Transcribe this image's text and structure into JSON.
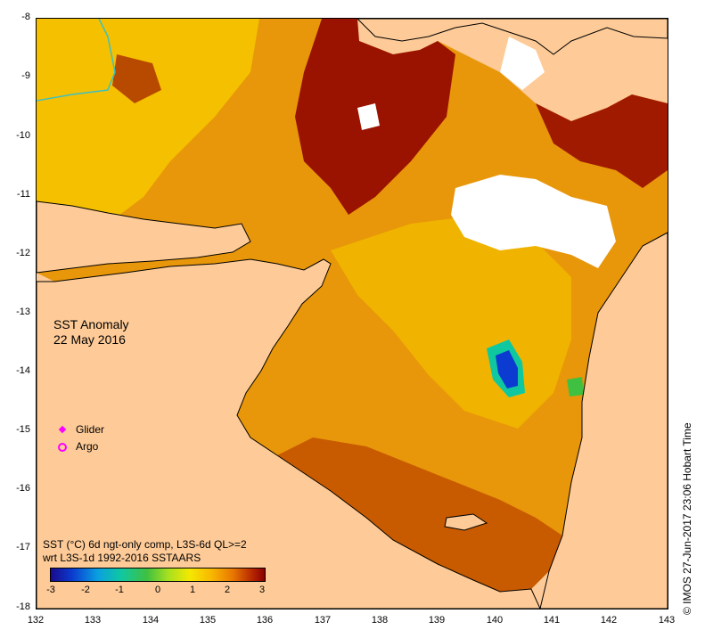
{
  "map": {
    "title_line1": "SST Anomaly",
    "title_line2": "22 May 2016",
    "x_ticks": [
      "132",
      "133",
      "134",
      "135",
      "136",
      "137",
      "138",
      "139",
      "140",
      "141",
      "142",
      "143"
    ],
    "y_ticks": [
      "-8",
      "-9",
      "-10",
      "-11",
      "-12",
      "-13",
      "-14",
      "-15",
      "-16",
      "-17",
      "-18"
    ],
    "colors": {
      "land": "#fecb98",
      "coast": "#000000",
      "warm": "#8a0000",
      "cool": "#1a0a8c"
    }
  },
  "legend": {
    "glider_label": "Glider",
    "argo_label": "Argo",
    "glider_color": "#ff00ff",
    "argo_color": "#ff00ff"
  },
  "caption": {
    "line1": "SST (°C) 6d ngt-only comp, L3S-6d QL>=2",
    "line2": "wrt L3S-1d 1992-2016 SSTAARS"
  },
  "colorbar": {
    "ticks": [
      "-3",
      "-2",
      "-1",
      "0",
      "1",
      "2",
      "3"
    ]
  },
  "footer": {
    "credit": "© IMOS 27-Jun-2017 23:06 Hobart Time"
  }
}
